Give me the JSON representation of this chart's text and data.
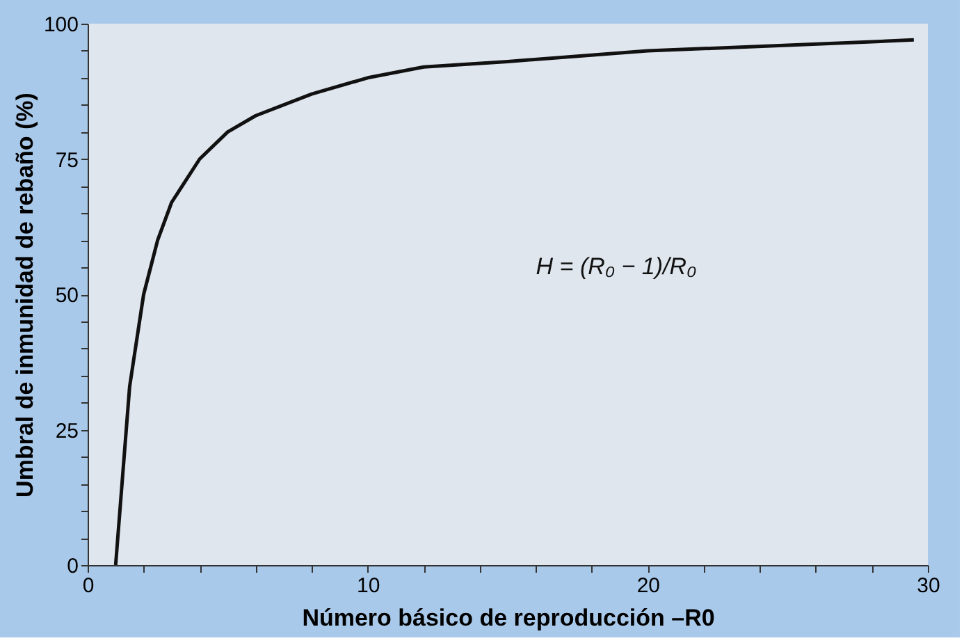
{
  "chart_data": {
    "type": "line",
    "xlabel": "Número básico de reproducción –R0",
    "ylabel": "Umbral de inmunidad de rebaño (%)",
    "annotations": [
      "H = (R₀ − 1)/R₀"
    ],
    "x": [
      1,
      1.5,
      2,
      2.5,
      3,
      4,
      5,
      6,
      8,
      10,
      12,
      15,
      20,
      25,
      29.5
    ],
    "series": [
      {
        "color": "#111111",
        "values": [
          0,
          33,
          50,
          60,
          67,
          75,
          80,
          83,
          87,
          90,
          92,
          93,
          95,
          96,
          97
        ]
      }
    ],
    "xlim": [
      0,
      30
    ],
    "ylim": [
      0,
      100
    ],
    "xticks": [
      0,
      {
        "value": 2,
        "label": null
      },
      {
        "value": 4,
        "label": null
      },
      {
        "value": 6,
        "label": null
      },
      {
        "value": 8,
        "label": null
      },
      10,
      {
        "value": 12,
        "label": null
      },
      {
        "value": 14,
        "label": null
      },
      {
        "value": 16,
        "label": null
      },
      {
        "value": 18,
        "label": null
      },
      20,
      {
        "value": 22,
        "label": null
      },
      {
        "value": 24,
        "label": null
      },
      {
        "value": 26,
        "label": null
      },
      {
        "value": 28,
        "label": null
      },
      30
    ],
    "yticks": [
      0,
      {
        "value": 5,
        "label": null
      },
      {
        "value": 10,
        "label": null
      },
      {
        "value": 15,
        "label": null
      },
      {
        "value": 20,
        "label": null
      },
      25,
      {
        "value": 30,
        "label": null
      },
      {
        "value": 35,
        "label": null
      },
      {
        "value": 40,
        "label": null
      },
      {
        "value": 45,
        "label": null
      },
      50,
      {
        "value": 55,
        "label": null
      },
      {
        "value": 60,
        "label": null
      },
      {
        "value": 65,
        "label": null
      },
      {
        "value": 70,
        "label": null
      },
      75,
      {
        "value": 80,
        "label": null
      },
      {
        "value": 85,
        "label": null
      },
      {
        "value": 90,
        "label": null
      },
      {
        "value": 95,
        "label": null
      },
      100
    ],
    "grid": false,
    "marker": "none",
    "line_style": "solid"
  }
}
